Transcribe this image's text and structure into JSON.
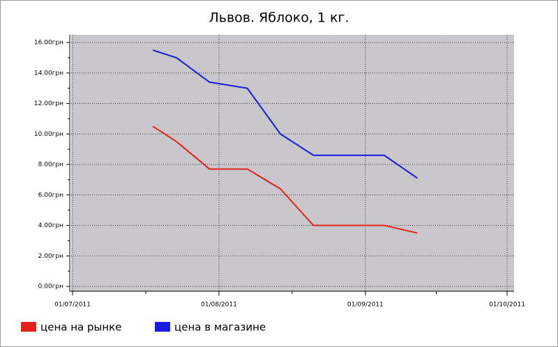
{
  "chart_data": {
    "type": "line",
    "title": "Львов. Яблоко, 1 кг.",
    "x": [
      "18/07/2011",
      "23/07/2011",
      "30/07/2011",
      "07/08/2011",
      "14/08/2011",
      "21/08/2011",
      "05/09/2011",
      "12/09/2011"
    ],
    "series": [
      {
        "name": "цена на рынке",
        "color": "#e8201c",
        "values": [
          10.5,
          9.5,
          7.7,
          7.7,
          6.4,
          4.0,
          4.0,
          3.5
        ]
      },
      {
        "name": "цена в магазине",
        "color": "#1a1ae0",
        "values": [
          15.5,
          15.0,
          13.4,
          13.0,
          10.0,
          8.6,
          8.6,
          7.1
        ]
      }
    ],
    "xlim": [
      "01/07/2011",
      "01/10/2011"
    ],
    "xticks": [
      "01/07/2011",
      "01/08/2011",
      "01/09/2011",
      "01/10/2011"
    ],
    "ylim": [
      0,
      16
    ],
    "yticks": [
      {
        "value": 0,
        "label": "0.00грн"
      },
      {
        "value": 2,
        "label": "2.00грн"
      },
      {
        "value": 4,
        "label": "4.00грн"
      },
      {
        "value": 6,
        "label": "6.00грн"
      },
      {
        "value": 8,
        "label": "8.00грн"
      },
      {
        "value": 10,
        "label": "10.00грн"
      },
      {
        "value": 12,
        "label": "12.00грн"
      },
      {
        "value": 14,
        "label": "14.00грн"
      },
      {
        "value": 16,
        "label": "16.00грн"
      }
    ],
    "grid": true,
    "legend": "bottom"
  }
}
